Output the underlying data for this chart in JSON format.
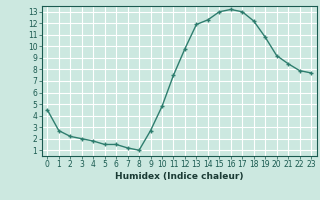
{
  "x": [
    0,
    1,
    2,
    3,
    4,
    5,
    6,
    7,
    8,
    9,
    10,
    11,
    12,
    13,
    14,
    15,
    16,
    17,
    18,
    19,
    20,
    21,
    22,
    23
  ],
  "y": [
    4.5,
    2.7,
    2.2,
    2.0,
    1.8,
    1.5,
    1.5,
    1.2,
    1.0,
    2.7,
    4.8,
    7.5,
    9.8,
    11.9,
    12.3,
    13.0,
    13.2,
    13.0,
    12.2,
    10.8,
    9.2,
    8.5,
    7.9,
    7.7
  ],
  "line_color": "#2e7d6e",
  "bg_color": "#cce8e0",
  "grid_color": "#b0d8cf",
  "xlabel": "Humidex (Indice chaleur)",
  "xlim": [
    -0.5,
    23.5
  ],
  "ylim": [
    0.5,
    13.5
  ],
  "xticks": [
    0,
    1,
    2,
    3,
    4,
    5,
    6,
    7,
    8,
    9,
    10,
    11,
    12,
    13,
    14,
    15,
    16,
    17,
    18,
    19,
    20,
    21,
    22,
    23
  ],
  "yticks": [
    1,
    2,
    3,
    4,
    5,
    6,
    7,
    8,
    9,
    10,
    11,
    12,
    13
  ],
  "marker_size": 3,
  "linewidth": 1.0,
  "tick_fontsize": 5.5,
  "xlabel_fontsize": 6.5
}
